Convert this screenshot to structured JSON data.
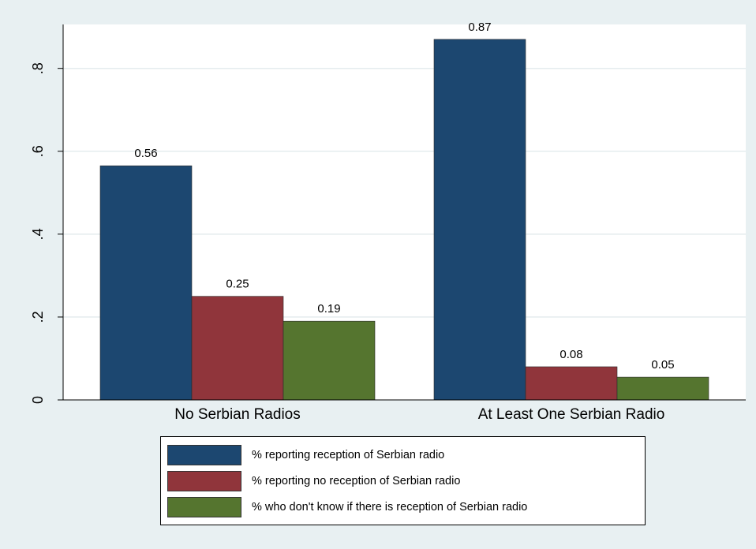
{
  "chart_data": {
    "type": "bar",
    "title": "",
    "xlabel": "",
    "ylabel": "",
    "categories": [
      "No Serbian Radios",
      "At Least One Serbian Radio"
    ],
    "series": [
      {
        "name": "% reporting reception of Serbian radio",
        "color": "#1c4770",
        "values": [
          0.565,
          0.87
        ],
        "labels": [
          "0.56",
          "0.87"
        ]
      },
      {
        "name": "% reporting no reception of Serbian radio",
        "color": "#90353b",
        "values": [
          0.25,
          0.08
        ],
        "labels": [
          "0.25",
          "0.08"
        ]
      },
      {
        "name": "% who don't know if there is reception of Serbian radio",
        "color": "#55752f",
        "values": [
          0.19,
          0.055
        ],
        "labels": [
          "0.19",
          "0.05"
        ]
      }
    ],
    "ylim": [
      0,
      0.906
    ],
    "yticks": [
      0,
      0.2,
      0.4,
      0.6,
      0.8
    ],
    "ytick_labels": [
      "0",
      ".2",
      ".4",
      ".6",
      ".8"
    ],
    "grid": true,
    "legend_position": "bottom"
  }
}
